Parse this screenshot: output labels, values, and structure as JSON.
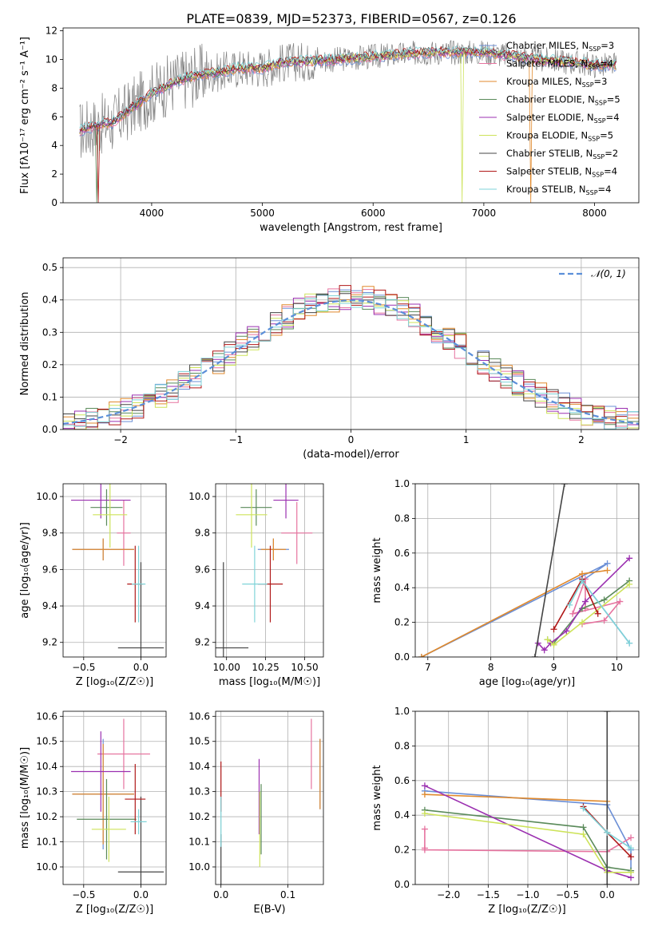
{
  "figure": {
    "title": "PLATE=0839, MJD=52373, FIBERID=0567, z=0.126"
  },
  "models": [
    {
      "name": "Chabrier MILES",
      "nssp": "3",
      "color": "#6b8fd6"
    },
    {
      "name": "Salpeter MILES",
      "nssp": "4",
      "color": "#e6739f"
    },
    {
      "name": "Kroupa MILES",
      "nssp": "3",
      "color": "#e0892c"
    },
    {
      "name": "Chabrier ELODIE",
      "nssp": "5",
      "color": "#5a8a5a"
    },
    {
      "name": "Salpeter ELODIE",
      "nssp": "4",
      "color": "#9b30b0"
    },
    {
      "name": "Kroupa ELODIE",
      "nssp": "5",
      "color": "#cde35a"
    },
    {
      "name": "Chabrier STELIB",
      "nssp": "2",
      "color": "#444444"
    },
    {
      "name": "Salpeter STELIB",
      "nssp": "4",
      "color": "#b01818"
    },
    {
      "name": "Kroupa STELIB",
      "nssp": "4",
      "color": "#7fd3d8"
    }
  ],
  "chart_data": [
    {
      "id": "spectrum",
      "type": "line",
      "xlabel": "wavelength [Angstrom, rest frame]",
      "ylabel": "Flux [fλ10⁻¹⁷ erg cm⁻² s⁻¹ A⁻¹]",
      "xlim": [
        3200,
        8400
      ],
      "ylim": [
        0,
        12.2
      ],
      "xticks": [
        "4000",
        "5000",
        "6000",
        "7000",
        "8000"
      ],
      "yticks": [
        "0",
        "2",
        "4",
        "6",
        "8",
        "10",
        "12"
      ],
      "grid": false,
      "legend": "right",
      "continuum": {
        "x": [
          3350,
          3500,
          3650,
          3800,
          4000,
          4200,
          4400,
          4600,
          4800,
          5000,
          5200,
          5500,
          6000,
          6500,
          7000,
          7500,
          7800,
          8000,
          8200
        ],
        "y": [
          5.0,
          5.4,
          5.6,
          6.5,
          7.6,
          8.4,
          8.9,
          9.1,
          9.4,
          9.4,
          9.8,
          9.9,
          10.2,
          10.5,
          10.5,
          10.0,
          9.8,
          9.6,
          9.6
        ]
      }
    },
    {
      "id": "residuals",
      "type": "line",
      "xlabel": "(data-model)/error",
      "ylabel": "Normed distribution",
      "xlim": [
        -2.5,
        2.5
      ],
      "ylim": [
        0,
        0.53
      ],
      "xticks": [
        "−2",
        "−1",
        "0",
        "1",
        "2"
      ],
      "yticks": [
        "0.0",
        "0.1",
        "0.2",
        "0.3",
        "0.4",
        "0.5"
      ],
      "grid": true,
      "legend": "top-right",
      "reference_label": "𝒩(0, 1)"
    },
    {
      "id": "age-vs-z",
      "type": "scatter",
      "xlabel": "Z [log₁₀(Z/Z☉)]",
      "ylabel": "age  [log₁₀(age/yr)]",
      "xlim": [
        -0.68,
        0.22
      ],
      "ylim": [
        9.12,
        10.07
      ],
      "xticks": [
        "−0.5",
        "0.0"
      ],
      "yticks": [
        "9.2",
        "9.4",
        "9.6",
        "9.8",
        "10.0"
      ],
      "grid": true,
      "points": [
        {
          "x": -0.33,
          "xerr": 0.27,
          "y": 9.71,
          "yerr": 0.06,
          "model": 0
        },
        {
          "x": -0.15,
          "xerr": 0.06,
          "y": 9.8,
          "yerr": 0.18,
          "model": 1
        },
        {
          "x": -0.33,
          "xerr": 0.27,
          "y": 9.71,
          "yerr": 0.06,
          "model": 2
        },
        {
          "x": -0.3,
          "xerr": 0.14,
          "y": 9.94,
          "yerr": 0.1,
          "model": 3
        },
        {
          "x": -0.35,
          "xerr": 0.26,
          "y": 9.98,
          "yerr": 0.1,
          "model": 4
        },
        {
          "x": -0.27,
          "xerr": 0.15,
          "y": 9.9,
          "yerr": 0.18,
          "model": 5
        },
        {
          "x": 0.0,
          "xerr": 0.2,
          "y": 9.17,
          "yerr": 0.47,
          "model": 6
        },
        {
          "x": -0.05,
          "xerr": 0.07,
          "y": 9.52,
          "yerr": 0.21,
          "model": 7
        },
        {
          "x": -0.02,
          "xerr": 0.06,
          "y": 9.52,
          "yerr": 0.21,
          "model": 8
        }
      ]
    },
    {
      "id": "age-vs-mass",
      "type": "scatter",
      "xlabel": "mass [log₁₀(M/M☉)]",
      "ylabel": "",
      "xlim": [
        9.93,
        10.62
      ],
      "ylim": [
        9.12,
        10.07
      ],
      "xticks": [
        "10.00",
        "10.25",
        "10.50"
      ],
      "yticks": [
        "9.2",
        "9.4",
        "9.6",
        "9.8",
        "10.0"
      ],
      "grid": true,
      "points": [
        {
          "x": 10.3,
          "xerr": 0.1,
          "y": 9.71,
          "yerr": 0.06,
          "model": 0
        },
        {
          "x": 10.45,
          "xerr": 0.1,
          "y": 9.8,
          "yerr": 0.17,
          "model": 1
        },
        {
          "x": 10.3,
          "xerr": 0.08,
          "y": 9.71,
          "yerr": 0.06,
          "model": 2
        },
        {
          "x": 10.19,
          "xerr": 0.1,
          "y": 9.94,
          "yerr": 0.1,
          "model": 3
        },
        {
          "x": 10.38,
          "xerr": 0.08,
          "y": 9.98,
          "yerr": 0.1,
          "model": 4
        },
        {
          "x": 10.16,
          "xerr": 0.1,
          "y": 9.9,
          "yerr": 0.18,
          "model": 5
        },
        {
          "x": 9.98,
          "xerr": 0.16,
          "y": 9.17,
          "yerr": 0.47,
          "model": 6
        },
        {
          "x": 10.28,
          "xerr": 0.08,
          "y": 9.52,
          "yerr": 0.21,
          "model": 7
        },
        {
          "x": 10.18,
          "xerr": 0.08,
          "y": 9.52,
          "yerr": 0.21,
          "model": 8
        }
      ]
    },
    {
      "id": "mass-weight-vs-age",
      "type": "line",
      "xlabel": "age  [log₁₀(age/yr)]",
      "ylabel": "mass weight",
      "xlim": [
        6.8,
        10.35
      ],
      "ylim": [
        0,
        1.0
      ],
      "xticks": [
        "7",
        "8",
        "9",
        "10"
      ],
      "yticks": [
        "0.0",
        "0.2",
        "0.4",
        "0.6",
        "0.8",
        "1.0"
      ],
      "grid": true,
      "series": [
        {
          "model": 0,
          "x": [
            6.9,
            9.85,
            9.45,
            10.2
          ],
          "y": [
            0.0,
            0.54,
            0.44,
            0.08
          ]
        },
        {
          "model": 1,
          "x": [
            9.45,
            9.8,
            10.05,
            9.3,
            9.5,
            9.5
          ],
          "y": [
            0.19,
            0.21,
            0.32,
            0.25,
            0.45,
            0.28
          ]
        },
        {
          "model": 2,
          "x": [
            6.9,
            9.45,
            9.85
          ],
          "y": [
            0.0,
            0.48,
            0.5
          ]
        },
        {
          "model": 3,
          "x": [
            8.9,
            9.0,
            9.45,
            9.8,
            10.2
          ],
          "y": [
            0.1,
            0.08,
            0.28,
            0.33,
            0.44
          ]
        },
        {
          "model": 4,
          "x": [
            8.75,
            8.85,
            8.95,
            9.2,
            9.5,
            10.2
          ],
          "y": [
            0.08,
            0.04,
            0.08,
            0.15,
            0.32,
            0.57
          ]
        },
        {
          "model": 5,
          "x": [
            8.9,
            9.0,
            9.45,
            10.2
          ],
          "y": [
            0.1,
            0.07,
            0.2,
            0.42
          ]
        },
        {
          "model": 6,
          "x": [
            8.7,
            9.17
          ],
          "y": [
            0.0,
            1.0
          ]
        },
        {
          "model": 7,
          "x": [
            9.0,
            9.45,
            9.7
          ],
          "y": [
            0.16,
            0.45,
            0.25
          ]
        },
        {
          "model": 8,
          "x": [
            9.25,
            9.45,
            10.2
          ],
          "y": [
            0.3,
            0.44,
            0.08
          ]
        }
      ]
    },
    {
      "id": "mass-vs-z",
      "type": "scatter",
      "xlabel": "Z [log₁₀(Z/Z☉)]",
      "ylabel": "mass [log₁₀(M/M☉)]",
      "xlim": [
        -0.68,
        0.22
      ],
      "ylim": [
        9.93,
        10.62
      ],
      "xticks": [
        "−0.5",
        "0.0"
      ],
      "yticks": [
        "10.0",
        "10.1",
        "10.2",
        "10.3",
        "10.4",
        "10.5",
        "10.6"
      ],
      "grid": true,
      "points": [
        {
          "x": -0.33,
          "xerr": 0.27,
          "y": 10.29,
          "yerr": 0.22,
          "model": 0
        },
        {
          "x": -0.15,
          "xerr": 0.23,
          "y": 10.45,
          "yerr": 0.14,
          "model": 1
        },
        {
          "x": -0.33,
          "xerr": 0.27,
          "y": 10.29,
          "yerr": 0.2,
          "model": 2
        },
        {
          "x": -0.3,
          "xerr": 0.26,
          "y": 10.19,
          "yerr": 0.16,
          "model": 3
        },
        {
          "x": -0.35,
          "xerr": 0.26,
          "y": 10.38,
          "yerr": 0.16,
          "model": 4
        },
        {
          "x": -0.28,
          "xerr": 0.15,
          "y": 10.15,
          "yerr": 0.13,
          "model": 5
        },
        {
          "x": 0.0,
          "xerr": 0.2,
          "y": 9.98,
          "yerr": 0.3,
          "model": 6
        },
        {
          "x": -0.05,
          "xerr": 0.09,
          "y": 10.27,
          "yerr": 0.14,
          "model": 7
        },
        {
          "x": -0.02,
          "xerr": 0.07,
          "y": 10.18,
          "yerr": 0.05,
          "model": 8
        }
      ]
    },
    {
      "id": "mass-vs-ebv",
      "type": "scatter",
      "xlabel": "E(B-V)",
      "ylabel": "",
      "xlim": [
        -0.008,
        0.153
      ],
      "ylim": [
        9.93,
        10.62
      ],
      "xticks": [
        "0.0",
        "0.1"
      ],
      "yticks": [
        "10.0",
        "10.1",
        "10.2",
        "10.3",
        "10.4",
        "10.5",
        "10.6"
      ],
      "grid": true,
      "points": [
        {
          "x": 0.148,
          "xerr": 0,
          "y": 10.37,
          "yerr": 0.14,
          "model": 0
        },
        {
          "x": 0.135,
          "xerr": 0,
          "y": 10.45,
          "yerr": 0.14,
          "model": 1
        },
        {
          "x": 0.148,
          "xerr": 0,
          "y": 10.37,
          "yerr": 0.14,
          "model": 2
        },
        {
          "x": 0.06,
          "xerr": 0,
          "y": 10.19,
          "yerr": 0.14,
          "model": 3
        },
        {
          "x": 0.057,
          "xerr": 0,
          "y": 10.28,
          "yerr": 0.15,
          "model": 4
        },
        {
          "x": 0.058,
          "xerr": 0,
          "y": 10.15,
          "yerr": 0.15,
          "model": 5
        },
        {
          "x": 0.0,
          "xerr": 0,
          "y": 10.03,
          "yerr": 0.1,
          "model": 6
        },
        {
          "x": 0.0,
          "xerr": 0,
          "y": 10.32,
          "yerr": 0.1,
          "model": 7
        },
        {
          "x": 0.0,
          "xerr": 0,
          "y": 10.18,
          "yerr": 0.1,
          "model": 8
        }
      ]
    },
    {
      "id": "mass-weight-vs-z",
      "type": "line",
      "xlabel": "Z [log₁₀(Z/Z☉)]",
      "ylabel": "mass weight",
      "xlim": [
        -2.42,
        0.4
      ],
      "ylim": [
        0,
        1.0
      ],
      "xticks": [
        "−2.0",
        "−1.5",
        "−1.0",
        "−0.5",
        "0.0"
      ],
      "yticks": [
        "0.0",
        "0.2",
        "0.4",
        "0.6",
        "0.8",
        "1.0"
      ],
      "grid": true,
      "series": [
        {
          "model": 0,
          "x": [
            -2.3,
            0.0,
            0.3,
            0.3
          ],
          "y": [
            0.54,
            0.46,
            0.2,
            0.08
          ]
        },
        {
          "model": 1,
          "x": [
            -2.3,
            -2.3,
            -2.3,
            0.0,
            0.3
          ],
          "y": [
            0.32,
            0.21,
            0.2,
            0.19,
            0.27
          ]
        },
        {
          "model": 2,
          "x": [
            -2.3,
            0.0
          ],
          "y": [
            0.52,
            0.48
          ]
        },
        {
          "model": 3,
          "x": [
            -2.3,
            -0.3,
            0.0,
            0.3
          ],
          "y": [
            0.43,
            0.33,
            0.1,
            0.08
          ]
        },
        {
          "model": 4,
          "x": [
            -2.3,
            0.0,
            0.3
          ],
          "y": [
            0.57,
            0.08,
            0.04
          ]
        },
        {
          "model": 5,
          "x": [
            -2.3,
            -0.3,
            0.0,
            0.3
          ],
          "y": [
            0.41,
            0.29,
            0.07,
            0.07
          ]
        },
        {
          "model": 6,
          "x": [
            0.0,
            0.0
          ],
          "y": [
            0.0,
            1.0
          ]
        },
        {
          "model": 7,
          "x": [
            -0.3,
            0.0,
            0.3
          ],
          "y": [
            0.45,
            0.3,
            0.16
          ]
        },
        {
          "model": 8,
          "x": [
            -0.3,
            0.0,
            0.3
          ],
          "y": [
            0.44,
            0.3,
            0.21
          ]
        }
      ]
    }
  ]
}
